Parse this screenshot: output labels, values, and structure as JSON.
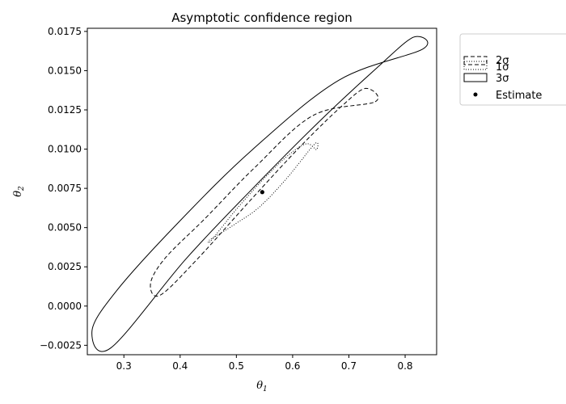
{
  "chart_data": {
    "type": "line",
    "title": "Asymptotic confidence region",
    "xlabel": "θ1",
    "ylabel": "θ2",
    "xlim": [
      0.235,
      0.856
    ],
    "ylim": [
      -0.0031,
      0.0177
    ],
    "xticks": [
      "0.3",
      "0.4",
      "0.5",
      "0.6",
      "0.7",
      "0.8"
    ],
    "xtick_values": [
      0.3,
      0.4,
      0.5,
      0.6,
      0.7,
      0.8
    ],
    "yticks": [
      "−0.0025",
      "0.0000",
      "0.0025",
      "0.0050",
      "0.0075",
      "0.0100",
      "0.0125",
      "0.0150",
      "0.0175"
    ],
    "ytick_values": [
      -0.0025,
      0.0,
      0.0025,
      0.005,
      0.0075,
      0.01,
      0.0125,
      0.015,
      0.0175
    ],
    "grid": false,
    "legend_position": "outside-top-right",
    "estimate": {
      "name": "Estimate",
      "x": 0.546,
      "y": 0.00726
    },
    "series": [
      {
        "name": "1σ",
        "style": "dotted",
        "points": [
          [
            0.6421,
            0.00997
          ],
          [
            0.6247,
            0.01034
          ],
          [
            0.5936,
            0.00965
          ],
          [
            0.5508,
            0.00819
          ],
          [
            0.5019,
            0.00625
          ],
          [
            0.4552,
            0.00418
          ],
          [
            0.4522,
            0.00421
          ],
          [
            0.4679,
            0.00455
          ],
          [
            0.4983,
            0.00524
          ],
          [
            0.541,
            0.00631
          ],
          [
            0.5902,
            0.00817
          ],
          [
            0.6396,
            0.01034
          ]
        ]
      },
      {
        "name": "2σ",
        "style": "dashed",
        "points": [
          [
            0.7467,
            0.01302
          ],
          [
            0.7294,
            0.01387
          ],
          [
            0.6858,
            0.01269
          ],
          [
            0.6151,
            0.01022
          ],
          [
            0.5277,
            0.00685
          ],
          [
            0.4305,
            0.00299
          ],
          [
            0.3643,
            0.00069
          ],
          [
            0.3474,
            0.00144
          ],
          [
            0.3737,
            0.00307
          ],
          [
            0.4438,
            0.00556
          ],
          [
            0.5325,
            0.00882
          ],
          [
            0.6366,
            0.01215
          ]
        ]
      },
      {
        "name": "3σ",
        "style": "solid",
        "points": [
          [
            0.8314,
            0.01638
          ],
          [
            0.8146,
            0.01713
          ],
          [
            0.7486,
            0.01514
          ],
          [
            0.6459,
            0.01171
          ],
          [
            0.5289,
            0.00749
          ],
          [
            0.4097,
            0.00298
          ],
          [
            0.277,
            -0.00266
          ],
          [
            0.2434,
            -0.00156
          ],
          [
            0.2882,
            0.00103
          ],
          [
            0.3986,
            0.00539
          ],
          [
            0.5283,
            0.00996
          ],
          [
            0.6821,
            0.01439
          ]
        ]
      }
    ]
  }
}
